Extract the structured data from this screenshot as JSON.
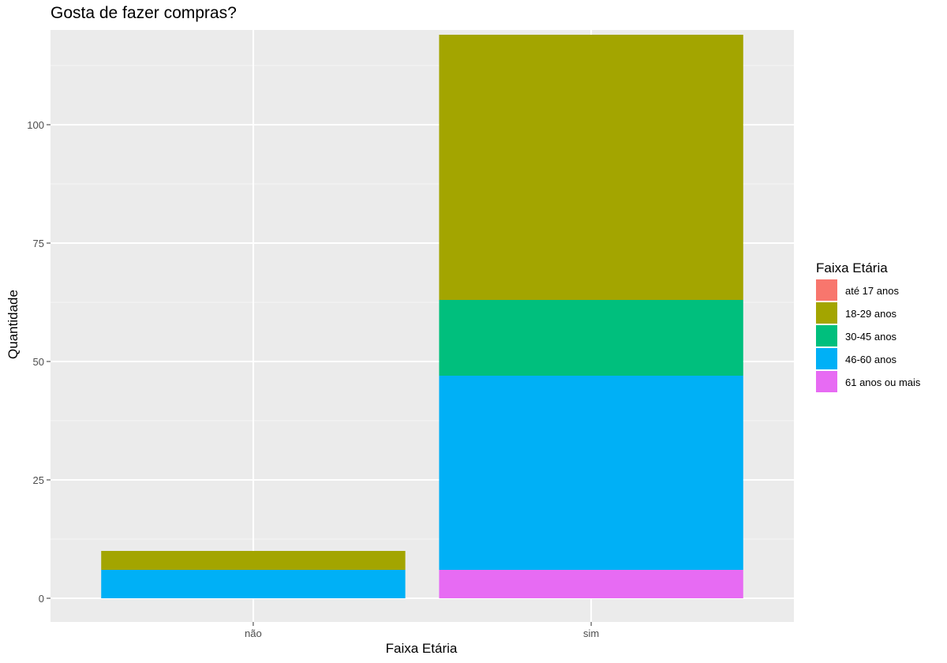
{
  "chart_data": {
    "type": "bar",
    "stacked": true,
    "title": "Gosta de fazer compras?",
    "xlabel": "Faixa Etária",
    "ylabel": "Quantidade",
    "categories": [
      "não",
      "sim"
    ],
    "ylim": [
      -5,
      120
    ],
    "yticks": [
      0,
      25,
      50,
      75,
      100
    ],
    "ytick_labels": [
      "0",
      "25",
      "50",
      "75",
      "100"
    ],
    "grid": true,
    "legend": {
      "title": "Faixa Etária",
      "position": "right"
    },
    "stack_order": [
      "61 anos ou mais",
      "46-60 anos",
      "30-45 anos",
      "18-29 anos",
      "até 17 anos"
    ],
    "series": [
      {
        "name": "até 17 anos",
        "color": "#F8766D",
        "values": [
          0,
          0
        ]
      },
      {
        "name": "18-29 anos",
        "color": "#A3A500",
        "values": [
          4,
          56
        ]
      },
      {
        "name": "30-45 anos",
        "color": "#00BF7D",
        "values": [
          0,
          16
        ]
      },
      {
        "name": "46-60 anos",
        "color": "#00B0F6",
        "values": [
          6,
          41
        ]
      },
      {
        "name": "61 anos ou mais",
        "color": "#E76BF3",
        "values": [
          0,
          6
        ]
      }
    ],
    "colors": {
      "panel_background": "#EBEBEB",
      "grid_major": "#FFFFFF",
      "grid_minor": "#F5F5F5",
      "axis_text": "#4D4D4D",
      "tick": "#333333",
      "title_text": "#000000"
    }
  }
}
